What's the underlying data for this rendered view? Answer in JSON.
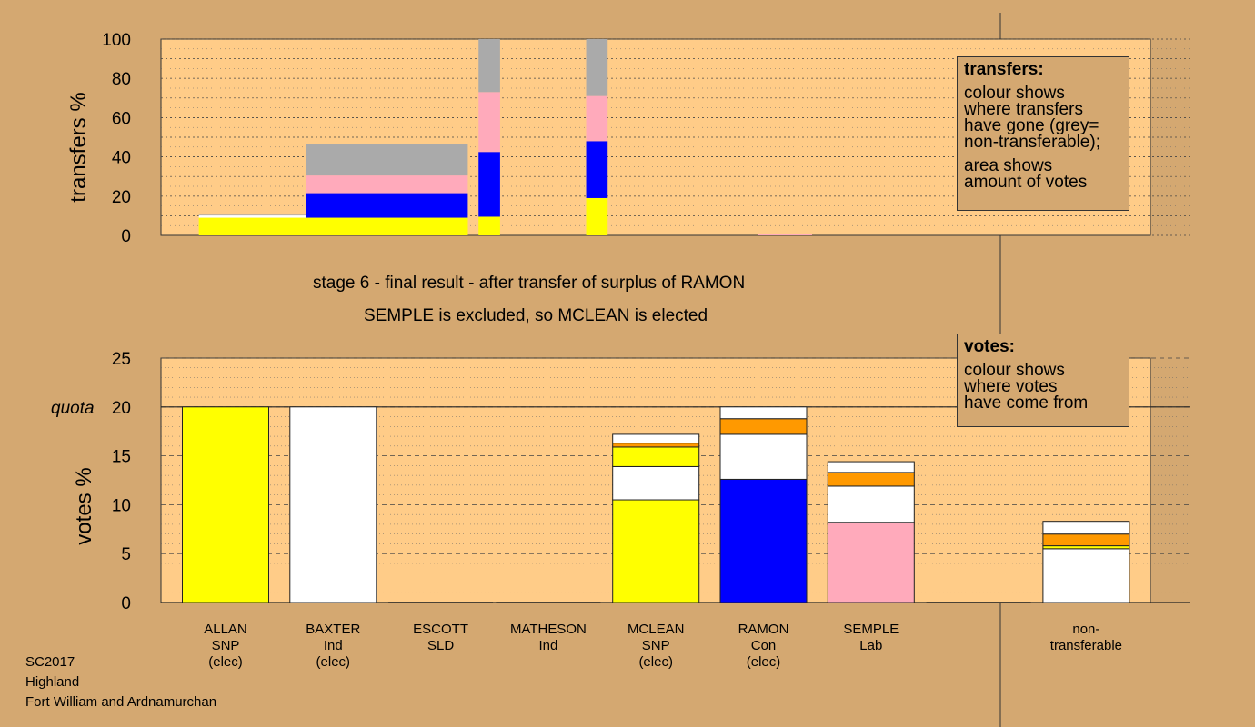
{
  "captions": {
    "stage": "stage 6 - final result - after transfer of surplus of RAMON",
    "outcome": "SEMPLE is excluded, so MCLEAN is elected"
  },
  "legend_transfers": {
    "title": "transfers:",
    "lines1": [
      "colour shows",
      "where transfers",
      "have gone (grey=",
      "non-transferable);"
    ],
    "lines2": [
      "area shows",
      "amount of votes"
    ]
  },
  "legend_votes": {
    "title": "votes:",
    "lines": [
      "colour shows",
      "where votes",
      "have come from"
    ]
  },
  "footer": [
    "SC2017",
    "Highland",
    "Fort William and Ardnamurchan"
  ],
  "colors": {
    "background": "#d4a871",
    "plot": "#ffcc88",
    "SNP": "#ffff00",
    "Ind": "#ffffff",
    "Con": "#0000ff",
    "Lab": "#ffaabb",
    "other": "#ff9900",
    "nontransferable": "#aaaaaa"
  },
  "chart_data": [
    {
      "type": "bar",
      "id": "transfers",
      "ylabel": "transfers %",
      "ylim": [
        0,
        100
      ],
      "yticks": [
        0,
        20,
        40,
        60,
        80,
        100
      ],
      "grid": true,
      "bars": [
        {
          "x0": 0.2,
          "x1": 2.7,
          "segments": [
            {
              "v": 9,
              "c": "SNP"
            },
            {
              "v": 1.2,
              "c": "Ind"
            },
            {
              "v": 0.3,
              "c": "nontransferable"
            }
          ]
        },
        {
          "x0": 1.2,
          "x1": 2.7,
          "segments": [
            {
              "v": 9,
              "c": "SNP"
            },
            {
              "v": 12.5,
              "c": "Con"
            },
            {
              "v": 9,
              "c": "Lab"
            },
            {
              "v": 16,
              "c": "nontransferable"
            }
          ]
        },
        {
          "x0": 2.8,
          "x1": 3.0,
          "segments": [
            {
              "v": 9.5,
              "c": "SNP"
            },
            {
              "v": 33,
              "c": "Con"
            },
            {
              "v": 30.5,
              "c": "Lab"
            },
            {
              "v": 27,
              "c": "nontransferable"
            }
          ]
        },
        {
          "x0": 3.8,
          "x1": 4.0,
          "segments": [
            {
              "v": 19,
              "c": "SNP"
            },
            {
              "v": 29,
              "c": "Con"
            },
            {
              "v": 23,
              "c": "Lab"
            },
            {
              "v": 29,
              "c": "nontransferable"
            }
          ]
        },
        {
          "x0": 5.4,
          "x1": 5.9,
          "segments": [
            {
              "v": 0.5,
              "c": "Lab"
            }
          ]
        }
      ]
    },
    {
      "type": "bar",
      "id": "votes",
      "ylabel": "votes %",
      "ylim": [
        0,
        25
      ],
      "yticks": [
        0,
        5,
        10,
        15,
        20,
        25
      ],
      "quota": 20,
      "quota_label": "quota",
      "grid": true,
      "categories": [
        {
          "lines": [
            "ALLAN",
            "SNP",
            "(elec)"
          ]
        },
        {
          "lines": [
            "BAXTER",
            "Ind",
            "(elec)"
          ]
        },
        {
          "lines": [
            "ESCOTT",
            "SLD"
          ]
        },
        {
          "lines": [
            "MATHESON",
            "Ind"
          ]
        },
        {
          "lines": [
            "MCLEAN",
            "SNP",
            "(elec)"
          ]
        },
        {
          "lines": [
            "RAMON",
            "Con",
            "(elec)"
          ]
        },
        {
          "lines": [
            "SEMPLE",
            "Lab"
          ]
        },
        {
          "lines": []
        },
        {
          "lines": [
            "non-",
            "transferable"
          ]
        }
      ],
      "stacks": [
        [
          {
            "v": 20,
            "c": "SNP"
          }
        ],
        [
          {
            "v": 20,
            "c": "Ind"
          }
        ],
        [],
        [],
        [
          {
            "v": 10.5,
            "c": "SNP"
          },
          {
            "v": 3.4,
            "c": "Ind"
          },
          {
            "v": 2.0,
            "c": "SNP"
          },
          {
            "v": 0.4,
            "c": "other"
          },
          {
            "v": 0.9,
            "c": "Ind"
          }
        ],
        [
          {
            "v": 12.6,
            "c": "Con"
          },
          {
            "v": 4.6,
            "c": "Ind"
          },
          {
            "v": 1.6,
            "c": "other"
          },
          {
            "v": 1.2,
            "c": "Ind"
          }
        ],
        [
          {
            "v": 8.2,
            "c": "Lab"
          },
          {
            "v": 3.7,
            "c": "Ind"
          },
          {
            "v": 1.4,
            "c": "other"
          },
          {
            "v": 1.1,
            "c": "Ind"
          }
        ],
        [],
        [
          {
            "v": 5.5,
            "c": "Ind"
          },
          {
            "v": 0.3,
            "c": "SNP"
          },
          {
            "v": 1.2,
            "c": "other"
          },
          {
            "v": 1.3,
            "c": "Ind"
          }
        ]
      ]
    }
  ]
}
